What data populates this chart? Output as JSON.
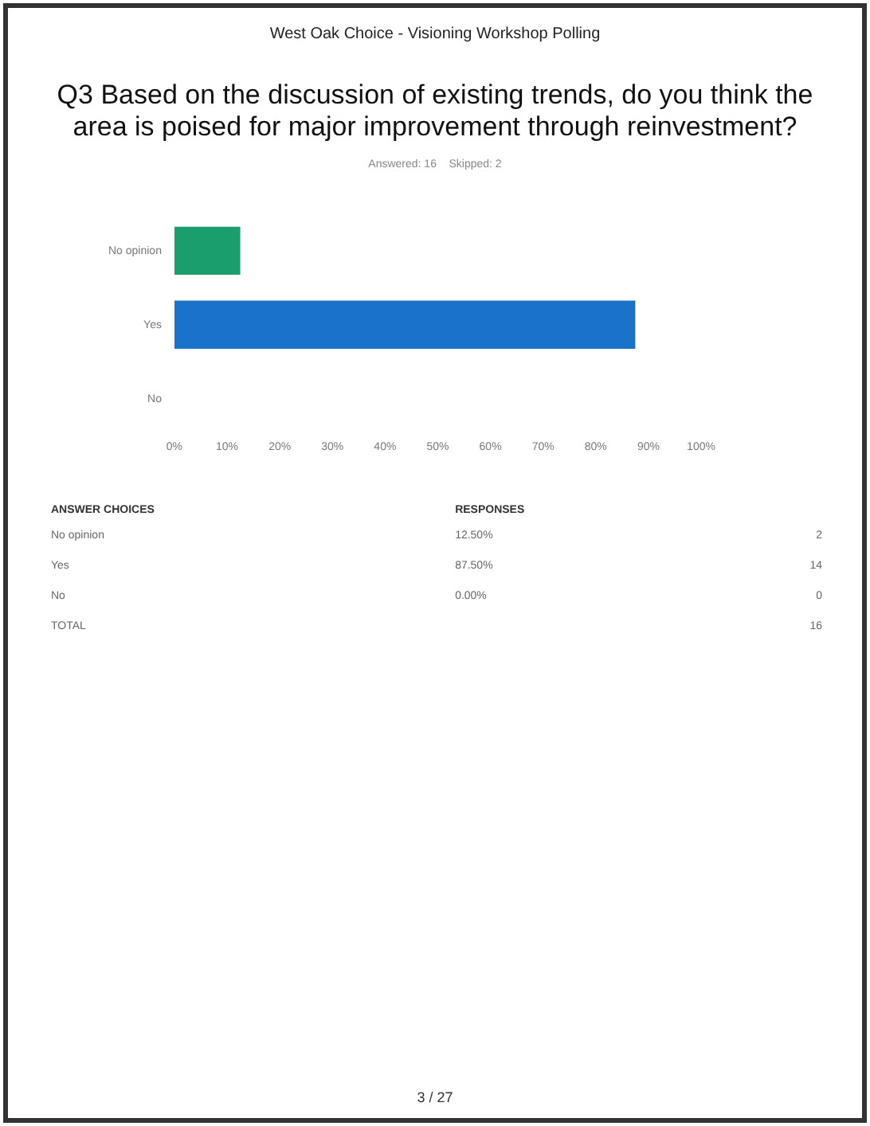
{
  "chart_data": {
    "type": "bar",
    "orientation": "horizontal",
    "title": "Q3 Based on the discussion of existing trends, do you think the area is poised for major improvement through reinvestment?",
    "subtitle": "Answered: 16    Skipped: 2",
    "categories": [
      "No opinion",
      "Yes",
      "No"
    ],
    "values": [
      12.5,
      87.5,
      0
    ],
    "colors": [
      "#1a9e6e",
      "#1a73c8",
      "#1a73c8"
    ],
    "xlim": [
      0,
      100
    ],
    "xticks": [
      {
        "value": 0,
        "label": "0%"
      },
      {
        "value": 10,
        "label": "10%"
      },
      {
        "value": 20,
        "label": "20%"
      },
      {
        "value": 30,
        "label": "30%"
      },
      {
        "value": 40,
        "label": "40%"
      },
      {
        "value": 50,
        "label": "50%"
      },
      {
        "value": 60,
        "label": "60%"
      },
      {
        "value": 70,
        "label": "70%"
      },
      {
        "value": 80,
        "label": "80%"
      },
      {
        "value": 90,
        "label": "90%"
      },
      {
        "value": 100,
        "label": "100%"
      }
    ],
    "grid": false,
    "legend": false,
    "annotations": [
      "West Oak Choice - Visioning Workshop Polling",
      "ANSWER CHOICES",
      "RESPONSES",
      "2",
      "14",
      "0",
      "TOTAL",
      "16",
      "3 / 27",
      "12.50%",
      "87.50%",
      "0.00%"
    ]
  }
}
